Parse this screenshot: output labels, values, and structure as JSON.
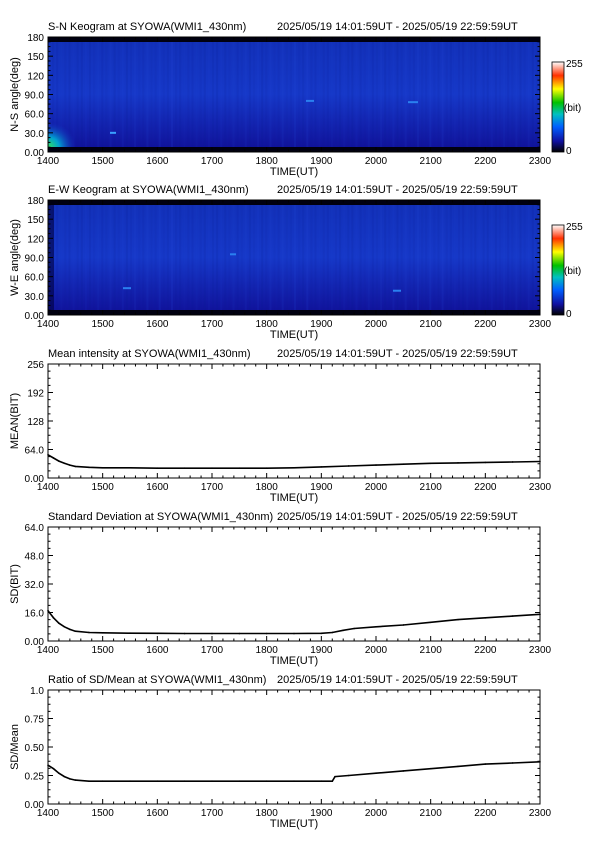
{
  "time_range": "2025/05/19 14:01:59UT - 2025/05/19 22:59:59UT",
  "colorbar": {
    "max_label": "255",
    "unit_label": "(bit)",
    "min_label": "0"
  },
  "chart_data": [
    {
      "type": "heatmap",
      "title": "S-N Keogram at SYOWA(WMI1_430nm)",
      "xlabel": "TIME(UT)",
      "ylabel": "N-S angle(deg)",
      "xlim": [
        1400,
        2300
      ],
      "ylim": [
        0,
        180
      ],
      "xticks": [
        "1400",
        "1500",
        "1600",
        "1700",
        "1800",
        "1900",
        "2000",
        "2100",
        "2200",
        "2300"
      ],
      "yticks": [
        "0.00",
        "30.0",
        "60.0",
        "90.0",
        "120",
        "150",
        "180"
      ],
      "colorbar_range": [
        0,
        255
      ]
    },
    {
      "type": "heatmap",
      "title": "E-W Keogram at SYOWA(WMI1_430nm)",
      "xlabel": "TIME(UT)",
      "ylabel": "W-E angle(deg)",
      "xlim": [
        1400,
        2300
      ],
      "ylim": [
        0,
        180
      ],
      "xticks": [
        "1400",
        "1500",
        "1600",
        "1700",
        "1800",
        "1900",
        "2000",
        "2100",
        "2200",
        "2300"
      ],
      "yticks": [
        "0.00",
        "30.0",
        "60.0",
        "90.0",
        "120",
        "150",
        "180"
      ],
      "colorbar_range": [
        0,
        255
      ]
    },
    {
      "type": "line",
      "title": "Mean intensity at SYOWA(WMI1_430nm)",
      "xlabel": "TIME(UT)",
      "ylabel": "MEAN(BIT)",
      "xlim": [
        1400,
        2300
      ],
      "ylim": [
        0,
        256
      ],
      "xticks": [
        "1400",
        "1500",
        "1600",
        "1700",
        "1800",
        "1900",
        "2000",
        "2100",
        "2200",
        "2300"
      ],
      "yticks": [
        "0.00",
        "64.0",
        "128",
        "192",
        "256"
      ],
      "x": [
        1400,
        1410,
        1420,
        1430,
        1440,
        1450,
        1475,
        1500,
        1550,
        1600,
        1650,
        1700,
        1750,
        1800,
        1850,
        1900,
        1950,
        2000,
        2050,
        2100,
        2150,
        2200,
        2250,
        2300
      ],
      "values": [
        52,
        45,
        38,
        33,
        29,
        26,
        24,
        23,
        23,
        22,
        22,
        22,
        22,
        22,
        23,
        25,
        27,
        29,
        31,
        33,
        34,
        35,
        36,
        37
      ]
    },
    {
      "type": "line",
      "title": "Standard Deviation at SYOWA(WMI1_430nm)",
      "xlabel": "TIME(UT)",
      "ylabel": "SD(BIT)",
      "xlim": [
        1400,
        2300
      ],
      "ylim": [
        0,
        64
      ],
      "xticks": [
        "1400",
        "1500",
        "1600",
        "1700",
        "1800",
        "1900",
        "2000",
        "2100",
        "2200",
        "2300"
      ],
      "yticks": [
        "0.00",
        "16.0",
        "32.0",
        "48.0",
        "64.0"
      ],
      "x": [
        1400,
        1410,
        1420,
        1430,
        1440,
        1450,
        1475,
        1500,
        1550,
        1600,
        1650,
        1700,
        1750,
        1800,
        1850,
        1900,
        1920,
        1940,
        1960,
        2000,
        2050,
        2100,
        2150,
        2200,
        2250,
        2300
      ],
      "values": [
        17,
        13,
        10,
        8,
        6.5,
        5.5,
        4.8,
        4.6,
        4.4,
        4.3,
        4.2,
        4.2,
        4.2,
        4.2,
        4.2,
        4.3,
        4.8,
        6,
        7,
        8,
        9,
        10.5,
        12,
        13,
        14,
        15
      ]
    },
    {
      "type": "line",
      "title": "Ratio of SD/Mean at SYOWA(WMI1_430nm)",
      "xlabel": "TIME(UT)",
      "ylabel": "SD/Mean",
      "xlim": [
        1400,
        2300
      ],
      "ylim": [
        0,
        1.0
      ],
      "xticks": [
        "1400",
        "1500",
        "1600",
        "1700",
        "1800",
        "1900",
        "2000",
        "2100",
        "2200",
        "2300"
      ],
      "yticks": [
        "0.00",
        "0.25",
        "0.50",
        "0.75",
        "1.0"
      ],
      "x": [
        1400,
        1410,
        1420,
        1430,
        1440,
        1450,
        1475,
        1500,
        1550,
        1600,
        1650,
        1700,
        1750,
        1800,
        1850,
        1900,
        1920,
        1925,
        1950,
        2000,
        2050,
        2100,
        2150,
        2200,
        2250,
        2300
      ],
      "values": [
        0.34,
        0.31,
        0.27,
        0.24,
        0.22,
        0.21,
        0.2,
        0.2,
        0.2,
        0.2,
        0.2,
        0.2,
        0.2,
        0.2,
        0.2,
        0.2,
        0.2,
        0.24,
        0.25,
        0.27,
        0.29,
        0.31,
        0.33,
        0.35,
        0.36,
        0.37
      ]
    }
  ]
}
